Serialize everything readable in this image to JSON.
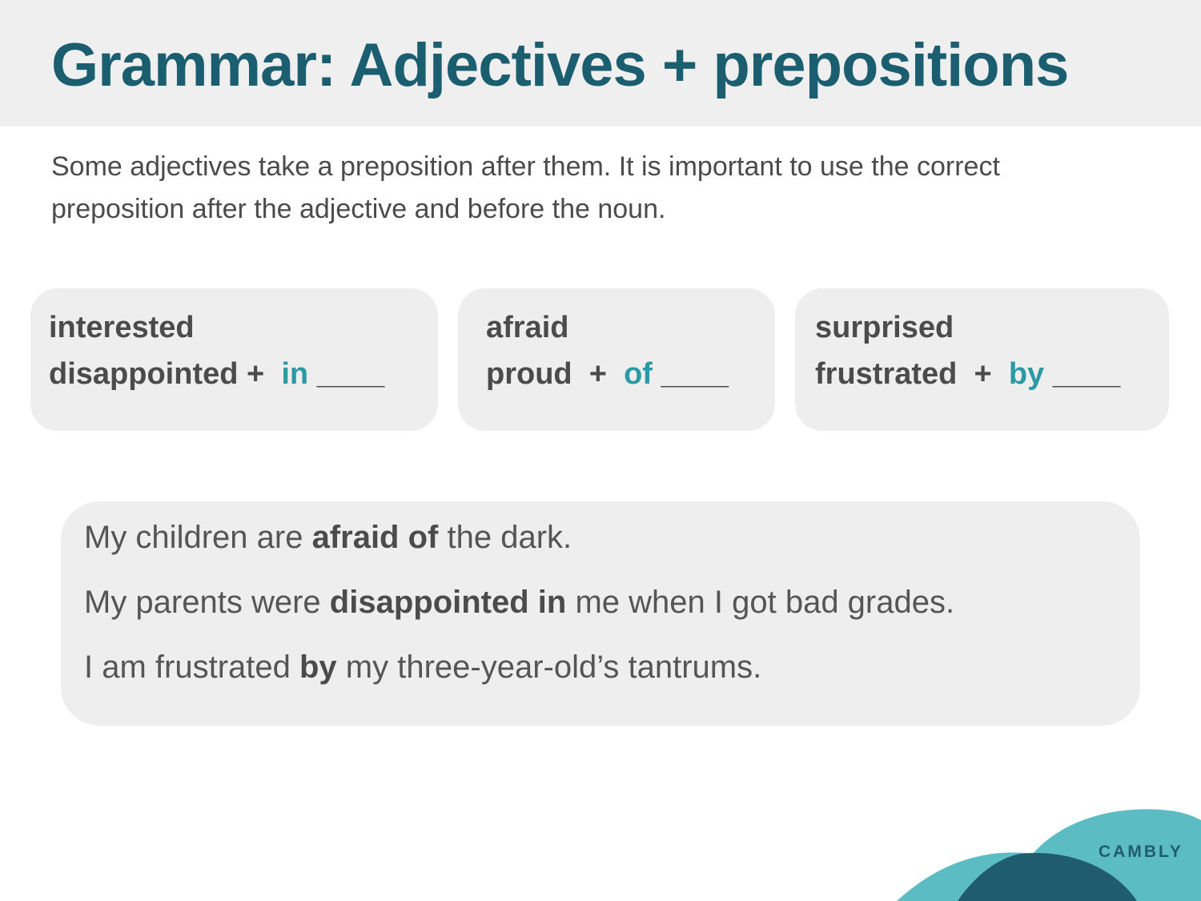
{
  "title": "Grammar: Adjectives + prepositions",
  "intro": "Some adjectives take a preposition after them. It is important to use the correct preposition after the adjective and before the noun.",
  "cards": [
    {
      "adjective_1": "interested",
      "adjective_2": "disappointed",
      "plus": "+",
      "preposition": "in",
      "blank": "____"
    },
    {
      "adjective_1": "afraid",
      "adjective_2": "proud",
      "plus": "+",
      "preposition": "of",
      "blank": "____"
    },
    {
      "adjective_1": "surprised",
      "adjective_2": "frustrated",
      "plus": "+",
      "preposition": "by",
      "blank": "____"
    }
  ],
  "examples": [
    {
      "before": "My children are ",
      "adjective": "afraid",
      "preposition": "of",
      "after": " the dark."
    },
    {
      "before": "My parents were ",
      "adjective": "disappointed",
      "preposition": "in",
      "after": " me when I got bad grades."
    },
    {
      "before": "I am frustrated ",
      "adjective": "",
      "preposition": "by",
      "after": " my three-year-old’s tantrums."
    }
  ],
  "brand": "CAMBLY",
  "colors": {
    "title": "#1a5e70",
    "preposition": "#2b9aa4",
    "body_text": "#4b4b4b",
    "panel_bg": "#eeeeee",
    "wave_light": "#5bbcc4",
    "wave_dark": "#1f5c6e"
  }
}
